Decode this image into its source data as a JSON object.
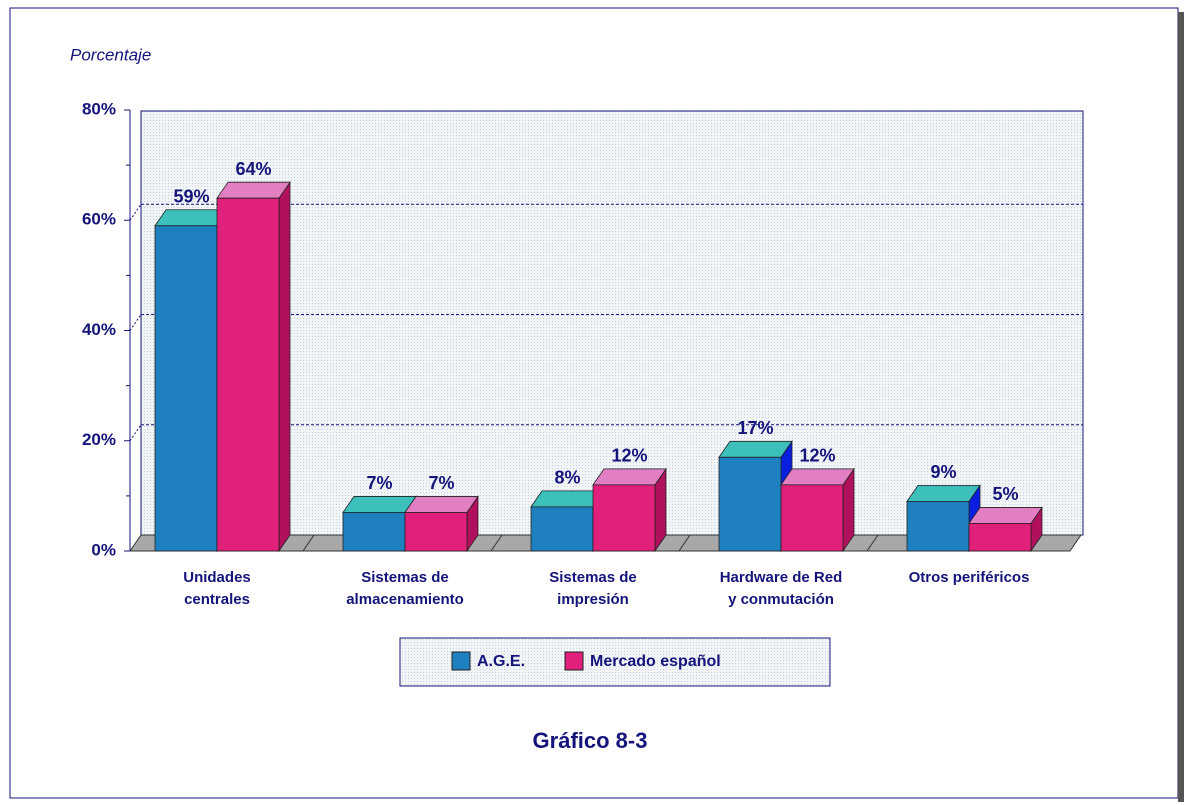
{
  "chart_data": {
    "type": "bar3d",
    "y_label": "Porcentaje",
    "caption": "Gráfico 8-3",
    "categories": [
      "Unidades\ncentrales",
      "Sistemas de\nalmacenamiento",
      "Sistemas de\nimpresión",
      "Hardware de Red\ny conmutación",
      "Otros periféricos"
    ],
    "series": [
      {
        "name": "A.G.E.",
        "color": "#1f80c0",
        "top_color": "#3dbfbb",
        "side_color": "#0a1ee0",
        "values": [
          59,
          7,
          8,
          17,
          9
        ],
        "value_labels": [
          "59%",
          "7%",
          "8%",
          "17%",
          "9%"
        ]
      },
      {
        "name": "Mercado español",
        "color": "#e0207a",
        "top_color": "#e27ec2",
        "side_color": "#b0105c",
        "values": [
          64,
          7,
          12,
          12,
          5
        ],
        "value_labels": [
          "64%",
          "7%",
          "12%",
          "12%",
          "5%"
        ]
      }
    ],
    "ylim": [
      0,
      80
    ],
    "yticks": [
      {
        "value": 0,
        "label": "0%"
      },
      {
        "value": 20,
        "label": "20%"
      },
      {
        "value": 40,
        "label": "40%"
      },
      {
        "value": 60,
        "label": "60%"
      },
      {
        "value": 80,
        "label": "80%"
      }
    ],
    "grid": true
  }
}
